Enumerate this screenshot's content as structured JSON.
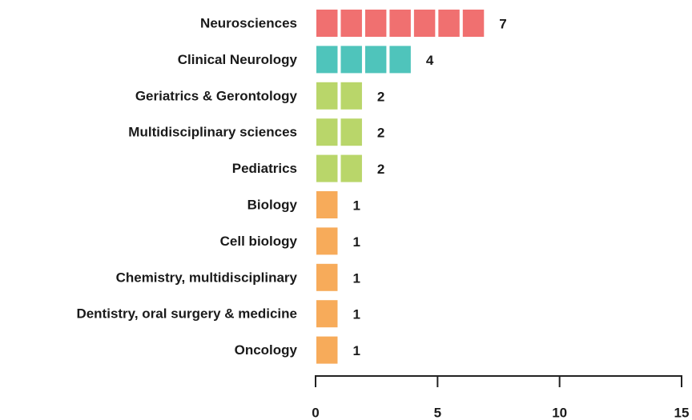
{
  "chart_data": {
    "type": "bar",
    "orientation": "horizontal",
    "categories": [
      "Neurosciences",
      "Clinical Neurology",
      "Geriatrics & Gerontology",
      "Multidisciplinary sciences",
      "Pediatrics",
      "Biology",
      "Cell biology",
      "Chemistry, multidisciplinary",
      "Dentistry, oral surgery & medicine",
      "Oncology"
    ],
    "values": [
      7,
      4,
      2,
      2,
      2,
      1,
      1,
      1,
      1,
      1
    ],
    "colors": [
      "#f07070",
      "#4fc4bb",
      "#b9d66a",
      "#b9d66a",
      "#b9d66a",
      "#f7ab5a",
      "#f7ab5a",
      "#f7ab5a",
      "#f7ab5a",
      "#f7ab5a"
    ],
    "xlim": [
      0,
      15
    ],
    "xticks": [
      0,
      5,
      10,
      15
    ]
  }
}
